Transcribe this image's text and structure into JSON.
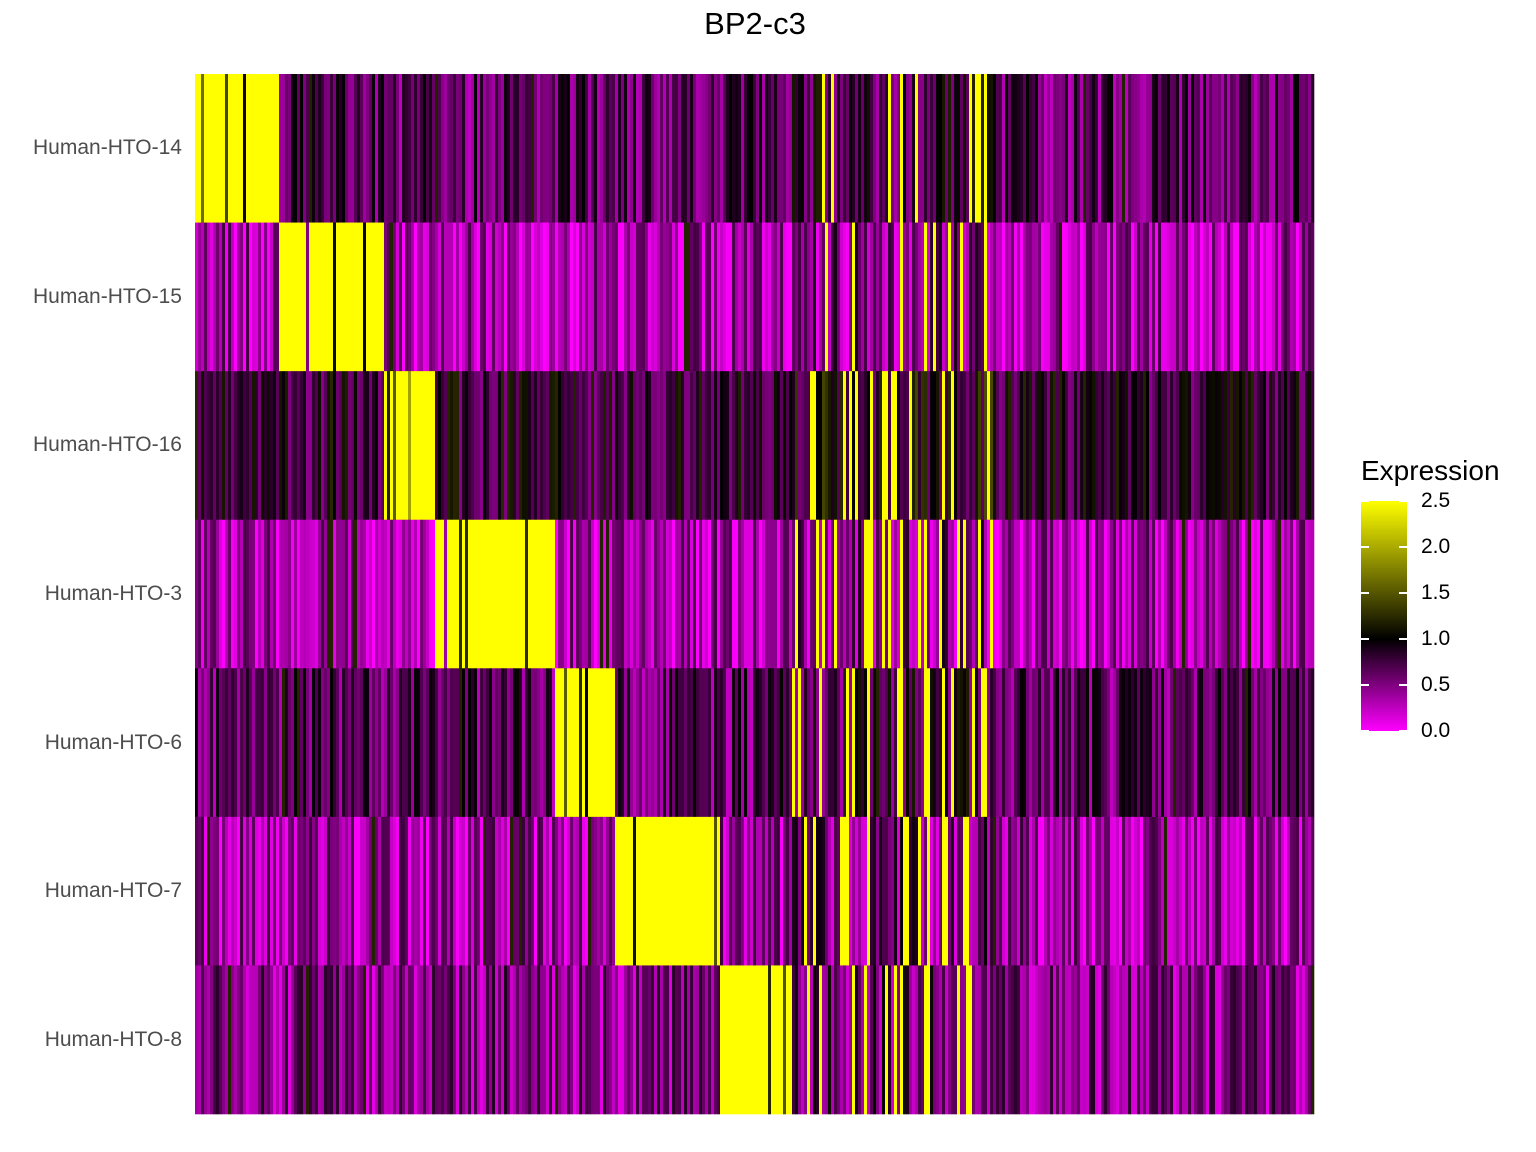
{
  "chart_data": {
    "type": "heatmap",
    "title": "BP2-c3",
    "rows": [
      "Human-HTO-14",
      "Human-HTO-15",
      "Human-HTO-16",
      "Human-HTO-3",
      "Human-HTO-6",
      "Human-HTO-7",
      "Human-HTO-8"
    ],
    "column_groups": [
      {
        "high_row": "Human-HTO-14",
        "fraction": 0.075
      },
      {
        "high_row": "Human-HTO-15",
        "fraction": 0.094
      },
      {
        "high_row": "Human-HTO-16",
        "fraction": 0.046
      },
      {
        "high_row": "Human-HTO-3",
        "fraction": 0.106
      },
      {
        "high_row": "Human-HTO-6",
        "fraction": 0.053
      },
      {
        "high_row": "Human-HTO-7",
        "fraction": 0.093
      },
      {
        "high_row": "Human-HTO-8",
        "fraction": 0.065
      },
      {
        "high_row": "mixed",
        "fraction": 0.18
      },
      {
        "high_row": "none",
        "fraction": 0.288
      }
    ],
    "background_level": {
      "Human-HTO-14": 0.6,
      "Human-HTO-15": 0.3,
      "Human-HTO-16": 0.8,
      "Human-HTO-3": 0.3,
      "Human-HTO-6": 0.6,
      "Human-HTO-7": 0.35,
      "Human-HTO-8": 0.45
    },
    "high_level": 2.5,
    "legend": {
      "title": "Expression",
      "ticks": [
        "2.5",
        "2.0",
        "1.5",
        "1.0",
        "0.5",
        "0.0"
      ],
      "range": [
        0.0,
        2.5
      ],
      "colors": [
        "#ff00ff",
        "#000000",
        "#ffff00"
      ],
      "placement": "right"
    }
  }
}
